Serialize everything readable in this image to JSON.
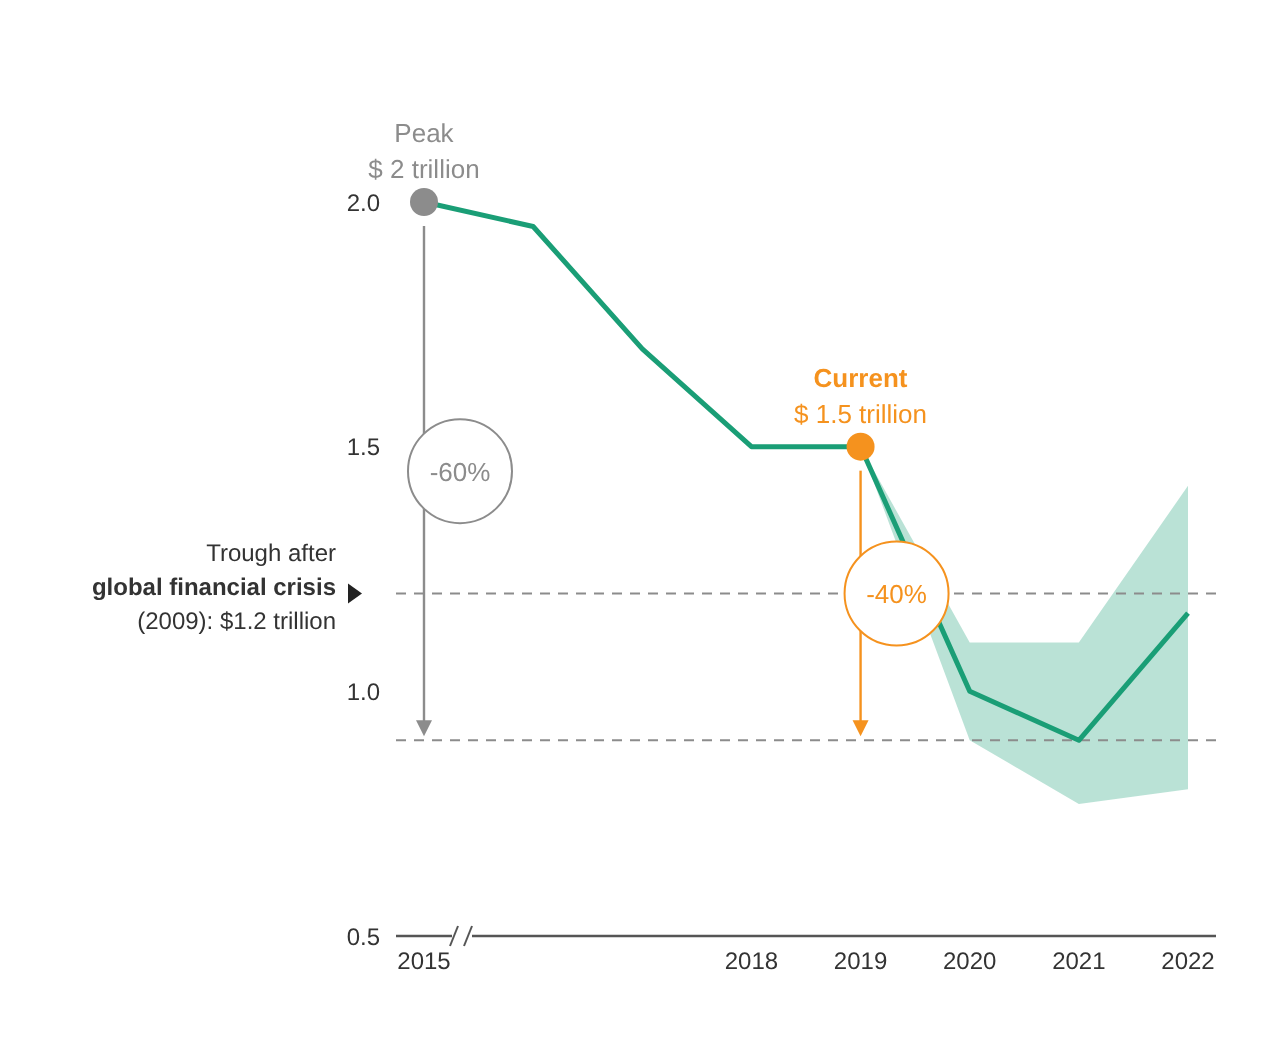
{
  "chart_data": {
    "type": "line",
    "categories": [
      "2015",
      null,
      null,
      "2018",
      "2019",
      "2020",
      "2021",
      "2022"
    ],
    "series": [
      {
        "color": "#1a9e76",
        "values": [
          2.0,
          1.95,
          1.7,
          1.5,
          1.5,
          1.0,
          0.9,
          1.16
        ],
        "lower": [
          null,
          null,
          null,
          null,
          1.5,
          0.9,
          0.77,
          0.8
        ],
        "upper": [
          null,
          null,
          null,
          null,
          1.5,
          1.1,
          1.1,
          1.42
        ]
      },
      {
        "type": "scatter",
        "color": "#8c8c8c",
        "values": [
          2.0,
          null,
          null,
          null,
          null,
          null,
          null,
          null
        ],
        "marker": "circle"
      },
      {
        "type": "scatter",
        "color": "#f5921e",
        "values": [
          null,
          null,
          null,
          null,
          1.5,
          null,
          null,
          null
        ],
        "marker": "circle"
      }
    ],
    "ylim": [
      0.5,
      2.0
    ],
    "yticks": [
      0.5,
      {
        "value": 1,
        "label": "1.0"
      },
      1.5,
      {
        "value": 2,
        "label": "2.0"
      }
    ],
    "ref_lines": [
      {
        "axis": "y",
        "value": 1.2,
        "label": "Trough after\nglobal financial crisis\n(2009): $1.2 trillion",
        "color": "#8c8c8c",
        "line_style": "dashed"
      },
      {
        "axis": "y",
        "value": 0.9,
        "color": "#8c8c8c",
        "line_style": "dashed"
      }
    ],
    "annotations": [
      {
        "text": "Peak\n$ 2 trillion",
        "x": "2015",
        "y": 2.0
      },
      {
        "text": "Current\n$ 1.5 trillion",
        "x": "2019",
        "y": 1.5
      },
      "-60%",
      "-40%"
    ],
    "marker": "none",
    "line_style": "solid",
    "grid": false,
    "legend": false
  }
}
